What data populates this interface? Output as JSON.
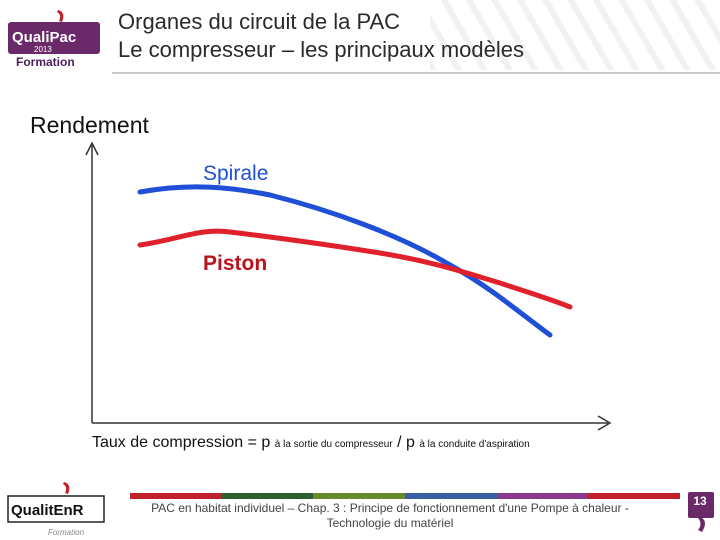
{
  "header": {
    "logo_brand": "QualiPac",
    "logo_year": "2013",
    "logo_sub": "Formation",
    "title_line1": "Organes du circuit de la PAC",
    "title_line2": "Le compresseur – les principaux modèles"
  },
  "chart_data": {
    "type": "line",
    "ylabel": "Rendement",
    "xlabel_main": "Taux de compression = p",
    "xlabel_sub1": "à la sortie du compresseur",
    "xlabel_sep": " / p",
    "xlabel_sub2": "à la conduite d'aspiration",
    "series": [
      {
        "name": "Spirale",
        "color": "#1f4fd6"
      },
      {
        "name": "Piston",
        "color": "#e0202a"
      }
    ]
  },
  "footer": {
    "logo_brand": "QualitEnR",
    "logo_sub": "Formation",
    "text_line1": "PAC en habitat individuel – Chap. 3 : Principe de fonctionnement d'une Pompe à chaleur -",
    "text_line2": "Technologie du matériel",
    "page_number": "13",
    "bar_colors": [
      "#c0202a",
      "#2e5d2e",
      "#6a8a2e",
      "#3a5fa0",
      "#8a3a8a",
      "#c0202a"
    ]
  }
}
